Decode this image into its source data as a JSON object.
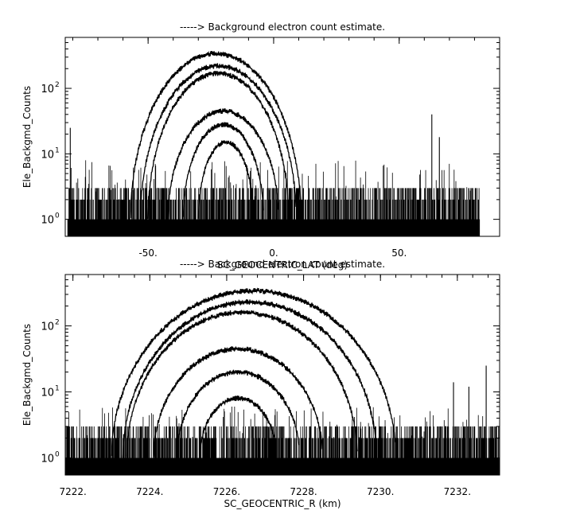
{
  "chart_data": [
    {
      "type": "line",
      "title": "-----> Background electron count estimate.",
      "xlabel": "SC_GEOCENTRIC_LAT (deg)",
      "ylabel": "Ele_Backgmd_Counts",
      "xlim": [
        -83,
        90
      ],
      "ylim": [
        0.55,
        600
      ],
      "y_scale": "log",
      "x_ticks": [
        -50,
        0,
        50
      ],
      "x_tick_labels": [
        "-50.",
        "0.",
        "50."
      ],
      "y_ticks": [
        1,
        10,
        100
      ],
      "y_tick_labels": [
        "10",
        "10",
        "10"
      ],
      "y_tick_exponents": [
        "0",
        "1",
        "2"
      ],
      "color": "#000000",
      "series": [
        {
          "kind": "noise",
          "x_range": [
            -82,
            82
          ],
          "levels": [
            1,
            2,
            3
          ],
          "peak": 8
        },
        {
          "kind": "arc",
          "center": -23,
          "half_width": 34,
          "peak": 340
        },
        {
          "kind": "arc",
          "center": -22,
          "half_width": 31,
          "peak": 220
        },
        {
          "kind": "arc",
          "center": -22,
          "half_width": 28,
          "peak": 170
        },
        {
          "kind": "arc",
          "center": -20,
          "half_width": 22,
          "peak": 45
        },
        {
          "kind": "arc",
          "center": -20,
          "half_width": 16,
          "peak": 28
        },
        {
          "kind": "arc",
          "center": -19,
          "half_width": 11,
          "peak": 15
        },
        {
          "kind": "spike",
          "x": -81,
          "value": 25
        },
        {
          "kind": "spike",
          "x": 63,
          "value": 40
        },
        {
          "kind": "spike",
          "x": 66,
          "value": 18
        }
      ]
    },
    {
      "type": "line",
      "title": "-----> Background electron count estimate.",
      "xlabel": "SC_GEOCENTRIC_R (km)",
      "ylabel": "Ele_Backgmd_Counts",
      "xlim": [
        7221.8,
        7233.1
      ],
      "ylim": [
        0.55,
        600
      ],
      "y_scale": "log",
      "x_ticks": [
        7222,
        7224,
        7226,
        7228,
        7230,
        7232
      ],
      "x_tick_labels": [
        "7222.",
        "7224.",
        "7226.",
        "7228.",
        "7230.",
        "7232."
      ],
      "y_ticks": [
        1,
        10,
        100
      ],
      "y_tick_labels": [
        "10",
        "10",
        "10"
      ],
      "y_tick_exponents": [
        "0",
        "1",
        "2"
      ],
      "color": "#000000",
      "series": [
        {
          "kind": "noise",
          "x_range": [
            7221.8,
            7233.1
          ],
          "levels": [
            1,
            2,
            3
          ],
          "peak": 6
        },
        {
          "kind": "arc",
          "center": 7226.7,
          "half_width": 3.7,
          "peak": 340
        },
        {
          "kind": "arc",
          "center": 7226.6,
          "half_width": 3.3,
          "peak": 230
        },
        {
          "kind": "arc",
          "center": 7226.4,
          "half_width": 3.0,
          "peak": 160
        },
        {
          "kind": "arc",
          "center": 7226.3,
          "half_width": 2.2,
          "peak": 45
        },
        {
          "kind": "arc",
          "center": 7226.3,
          "half_width": 1.6,
          "peak": 20
        },
        {
          "kind": "arc",
          "center": 7226.3,
          "half_width": 1.0,
          "peak": 8
        },
        {
          "kind": "spike",
          "x": 7232.75,
          "value": 25
        },
        {
          "kind": "spike",
          "x": 7231.9,
          "value": 14
        },
        {
          "kind": "spike",
          "x": 7232.3,
          "value": 12
        }
      ]
    }
  ]
}
